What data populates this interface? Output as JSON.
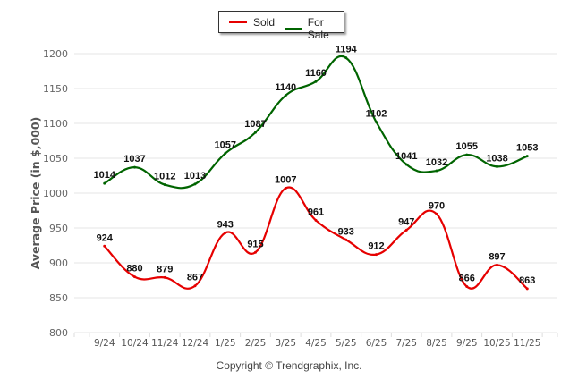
{
  "chart_data": {
    "type": "line",
    "title": "",
    "xlabel": "",
    "ylabel": "Average Price (in $,000)",
    "ylim": [
      800,
      1200
    ],
    "yticks": [
      800,
      850,
      900,
      950,
      1000,
      1050,
      1100,
      1150,
      1200
    ],
    "grid": true,
    "legend_position": "top-center",
    "categories": [
      "9/24",
      "10/24",
      "11/24",
      "12/24",
      "1/25",
      "2/25",
      "3/25",
      "4/25",
      "5/25",
      "6/25",
      "7/25",
      "8/25",
      "9/25",
      "10/25",
      "11/25"
    ],
    "series": [
      {
        "name": "Sold",
        "color": "#e60000",
        "values": [
          924,
          880,
          879,
          867,
          943,
          915,
          1007,
          961,
          933,
          912,
          947,
          970,
          866,
          897,
          863
        ]
      },
      {
        "name": "For Sale",
        "color": "#006400",
        "values": [
          1014,
          1037,
          1012,
          1013,
          1057,
          1087,
          1140,
          1160,
          1194,
          1102,
          1041,
          1032,
          1055,
          1038,
          1053
        ]
      }
    ]
  },
  "legend": {
    "sold": "Sold",
    "for_sale": "For Sale"
  },
  "footer": {
    "copyright": "Copyright © Trendgraphix, Inc."
  }
}
